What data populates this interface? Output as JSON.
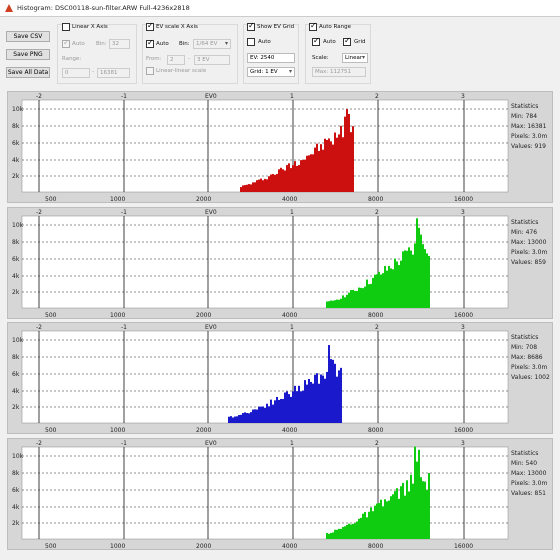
{
  "window": {
    "title": "Histogram: DSC00118-sun-filter.ARW Full-4236x2818"
  },
  "buttons": {
    "save_csv": "Save CSV",
    "save_png": "Save PNG",
    "save_all": "Save All Data"
  },
  "linear_x": {
    "label": "Linear X Axis",
    "checked": false,
    "auto_label": "Auto",
    "bin_label": "Bin:",
    "bin_value": "32",
    "range_label": "Range:",
    "range_from": "0",
    "range_to": "16381",
    "range_sep": "-"
  },
  "ev_x": {
    "label": "EV scale X Axis",
    "checked": true,
    "auto_label": "Auto",
    "bin_label": "Bin:",
    "bin_value": "1/64 EV",
    "from_label": "From:",
    "from_value": "2",
    "range_sep": "-",
    "to_value": "3 EV",
    "linear_note": "Linear-linear scale"
  },
  "ev_grid": {
    "label": "Show EV Grid",
    "checked": true,
    "auto_label": "Auto",
    "ev_value": "EV: 2540",
    "grid_value": "Grid: 1 EV"
  },
  "auto_range": {
    "label": "Auto Range",
    "checked": true,
    "auto_label": "Auto",
    "grid_label": "Grid",
    "scale_label": "Scale:",
    "scale_value": "Linear",
    "max_label": "Max: 112751"
  },
  "colors": {
    "red": "#cc1010",
    "green": "#10cc10",
    "blue": "#1a1acc",
    "panel_bg": "#d6d6d6"
  },
  "panels": [
    {
      "name": "red",
      "ev_ticks": [
        "-2",
        "-1",
        "EV0",
        "1",
        "2",
        "3"
      ],
      "lin_ticks": [
        "500",
        "1000",
        "2000",
        "4000",
        "8000",
        "16000"
      ],
      "y_ticks": [
        "10k",
        "8k",
        "6k",
        "4k",
        "2k"
      ],
      "stats": [
        "Statistics",
        "Min: 784",
        "Max: 16381",
        "Pixels: 3.0m",
        "Values: 919"
      ],
      "ticks_top": false
    },
    {
      "name": "green",
      "ev_ticks": [
        "-2",
        "-1",
        "EV0",
        "1",
        "2",
        "3"
      ],
      "lin_ticks": [
        "500",
        "1000",
        "2000",
        "4000",
        "8000",
        "16000"
      ],
      "y_ticks": [
        "10k",
        "8k",
        "6k",
        "4k",
        "2k"
      ],
      "stats": [
        "Statistics",
        "Min: 476",
        "Max: 13000",
        "Pixels: 3.0m",
        "Values: 859"
      ],
      "ticks_top": true
    },
    {
      "name": "blue",
      "ev_ticks": [
        "-2",
        "-1",
        "EV0",
        "1",
        "2",
        "3"
      ],
      "lin_ticks": [
        "500",
        "1000",
        "2000",
        "4000",
        "8000",
        "16000"
      ],
      "y_ticks": [
        "10k",
        "8k",
        "6k",
        "4k",
        "2k"
      ],
      "stats": [
        "Statistics",
        "Min: 708",
        "Max: 8686",
        "Pixels: 3.0m",
        "Values: 1002"
      ],
      "ticks_top": false
    },
    {
      "name": "green2",
      "ev_ticks": [
        "-2",
        "-1",
        "EV0",
        "1",
        "2",
        "3"
      ],
      "lin_ticks": [
        "500",
        "1000",
        "2000",
        "4000",
        "8000",
        "16000"
      ],
      "y_ticks": [
        "10k",
        "8k",
        "6k",
        "4k",
        "2k"
      ],
      "stats": [
        "Statistics",
        "Min: 540",
        "Max: 13000",
        "Pixels: 3.0m",
        "Values: 851"
      ],
      "ticks_top": true
    }
  ]
}
